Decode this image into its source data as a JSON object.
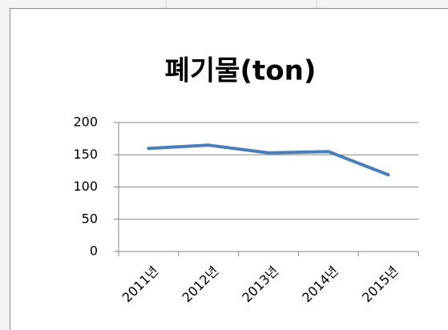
{
  "chart_data": {
    "type": "line",
    "title": "폐기물(ton)",
    "categories": [
      "2011년",
      "2012년",
      "2013년",
      "2014년",
      "2015년"
    ],
    "series": [
      {
        "name": "폐기물(ton)",
        "color": "#4a7ebb",
        "values": [
          160,
          165,
          153,
          155,
          119
        ]
      }
    ],
    "ylim": [
      0,
      200
    ],
    "yticks": [
      0,
      50,
      100,
      150,
      200
    ],
    "grid": true
  }
}
